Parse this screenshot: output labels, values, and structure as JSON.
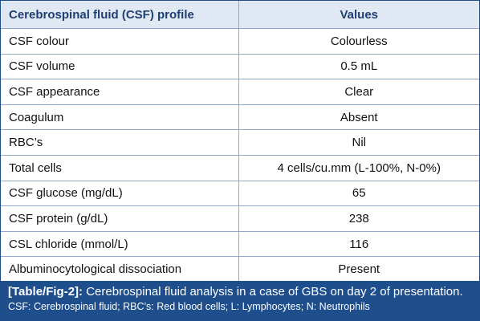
{
  "table": {
    "headers": [
      "Cerebrospinal fluid (CSF) profile",
      "Values"
    ],
    "rows": [
      {
        "label": "CSF colour",
        "value": "Colourless"
      },
      {
        "label": "CSF volume",
        "value": "0.5 mL"
      },
      {
        "label": "CSF appearance",
        "value": "Clear"
      },
      {
        "label": "Coagulum",
        "value": "Absent"
      },
      {
        "label": "RBC’s",
        "value": "Nil"
      },
      {
        "label": "Total cells",
        "value": "4 cells/cu.mm (L-100%, N-0%)"
      },
      {
        "label": "CSF glucose (mg/dL)",
        "value": "65"
      },
      {
        "label": "CSF protein (g/dL)",
        "value": "238"
      },
      {
        "label": "CSL chloride (mmol/L)",
        "value": "116"
      },
      {
        "label": "Albuminocytological dissociation",
        "value": "Present"
      }
    ]
  },
  "caption": {
    "tag": "[Table/Fig-2]:",
    "title": " Cerebrospinal fluid analysis in a case of GBS on day 2 of presentation.",
    "footnote": "CSF: Cerebrospinal fluid; RBC’s: Red blood cells; L: Lymphocytes; N: Neutrophils"
  },
  "colors": {
    "header_bg": "#dfe8f3",
    "header_text": "#1f3f73",
    "caption_bg": "#1f4e8c",
    "grid": "#8fa9cc"
  }
}
